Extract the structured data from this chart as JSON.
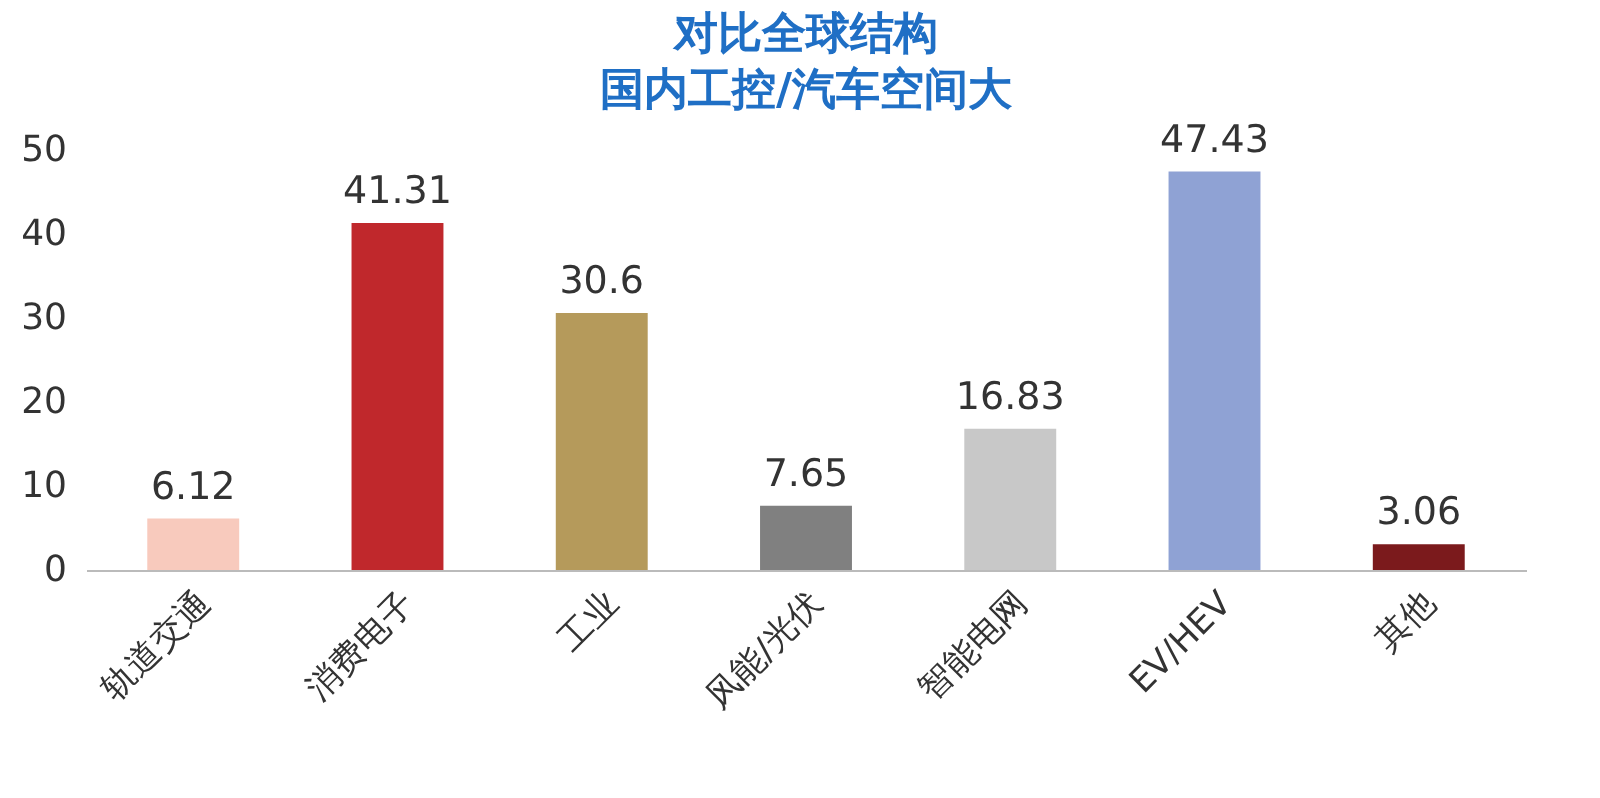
{
  "chart_data": {
    "type": "bar",
    "title": [
      "对比全球结构",
      "国内工控/汽车空间大"
    ],
    "categories": [
      "轨道交通",
      "消费电子",
      "工业",
      "风能/光伏",
      "智能电网",
      "EV/HEV",
      "其他"
    ],
    "values": [
      6.12,
      41.31,
      30.6,
      7.65,
      16.83,
      47.43,
      3.06
    ],
    "colors": [
      "#f8cabd",
      "#c0282c",
      "#b59a5b",
      "#808080",
      "#c8c8c8",
      "#8fa2d4",
      "#7b1a1c"
    ],
    "ylim": [
      0,
      50
    ],
    "yticks": [
      0,
      10,
      20,
      30,
      40,
      50
    ],
    "grid": false,
    "data_labels": true
  }
}
